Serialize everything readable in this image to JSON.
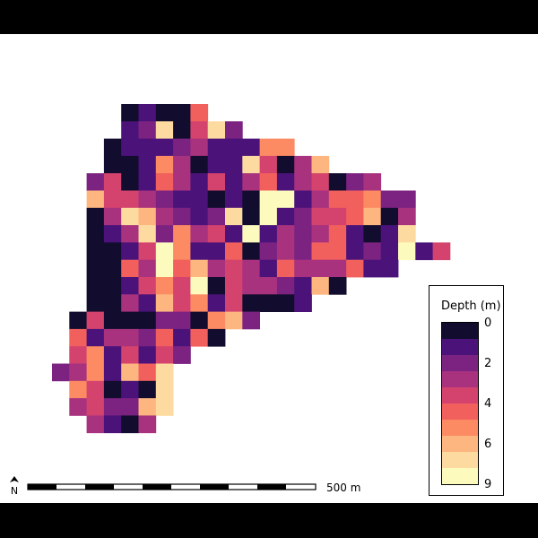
{
  "legend": {
    "title": "Depth (m)",
    "ticks": [
      "0",
      "2",
      "4",
      "6",
      "9"
    ],
    "colors": [
      "#120d2e",
      "#4b137a",
      "#7c2382",
      "#a8327e",
      "#d4436e",
      "#f1605d",
      "#fc8a63",
      "#fdb67f",
      "#fddba0",
      "#fcfbbd"
    ]
  },
  "scale_bar": {
    "label": "500 m"
  },
  "north_arrow": {
    "label": "N"
  },
  "chart_data": {
    "type": "heatmap",
    "value_range": [
      0,
      9
    ],
    "colorbar_label": "Depth (m)",
    "grid_rows": [
      {
        "row": 0,
        "start_col": 4,
        "values": [
          0,
          1,
          0,
          0,
          5
        ]
      },
      {
        "row": 1,
        "start_col": 4,
        "values": [
          1,
          2,
          8,
          0,
          4,
          8,
          2
        ]
      },
      {
        "row": 2,
        "start_col": 3,
        "values": [
          0,
          1,
          1,
          1,
          2,
          3,
          1,
          1,
          1,
          6,
          6
        ]
      },
      {
        "row": 3,
        "start_col": 3,
        "values": [
          0,
          0,
          1,
          6,
          3,
          0,
          1,
          1,
          8,
          4,
          0,
          3,
          7
        ]
      },
      {
        "row": 4,
        "start_col": 2,
        "values": [
          2,
          4,
          0,
          1,
          5,
          3,
          1,
          4,
          1,
          3,
          5,
          1,
          3,
          4,
          0,
          2,
          3
        ]
      },
      {
        "row": 5,
        "start_col": 2,
        "values": [
          7,
          4,
          4,
          3,
          2,
          1,
          1,
          0,
          1,
          0,
          9,
          9,
          1,
          3,
          5,
          5,
          6,
          2,
          2
        ]
      },
      {
        "row": 6,
        "start_col": 2,
        "values": [
          0,
          3,
          8,
          7,
          3,
          2,
          1,
          2,
          8,
          0,
          9,
          1,
          2,
          4,
          4,
          5,
          7,
          0,
          3
        ]
      },
      {
        "row": 7,
        "start_col": 2,
        "values": [
          0,
          1,
          3,
          8,
          2,
          6,
          3,
          4,
          1,
          9,
          1,
          3,
          2,
          3,
          5,
          1,
          0,
          1,
          8
        ]
      },
      {
        "row": 8,
        "start_col": 2,
        "values": [
          0,
          0,
          1,
          4,
          9,
          6,
          1,
          1,
          5,
          0,
          2,
          3,
          2,
          5,
          5,
          1,
          2,
          1,
          9,
          1,
          4
        ]
      },
      {
        "row": 9,
        "start_col": 2,
        "values": [
          0,
          0,
          5,
          3,
          9,
          5,
          7,
          3,
          4,
          3,
          1,
          5,
          3,
          3,
          3,
          5,
          1,
          1
        ]
      },
      {
        "row": 10,
        "start_col": 2,
        "values": [
          0,
          0,
          1,
          4,
          6,
          4,
          9,
          0,
          4,
          3,
          3,
          2,
          1,
          7,
          0
        ]
      },
      {
        "row": 11,
        "start_col": 2,
        "values": [
          0,
          0,
          3,
          1,
          7,
          4,
          6,
          1,
          4,
          0,
          0,
          0,
          1
        ]
      },
      {
        "row": 12,
        "start_col": 1,
        "values": [
          0,
          4,
          0,
          0,
          0,
          2,
          2,
          0,
          6,
          7,
          2
        ]
      },
      {
        "row": 13,
        "start_col": 1,
        "values": [
          5,
          1,
          3,
          3,
          2,
          5,
          1,
          5,
          0
        ]
      },
      {
        "row": 14,
        "start_col": 1,
        "values": [
          4,
          6,
          1,
          4,
          1,
          4,
          2
        ]
      },
      {
        "row": 15,
        "start_col": 0,
        "values": [
          2,
          3,
          6,
          1,
          7,
          5,
          8
        ]
      },
      {
        "row": 16,
        "start_col": 1,
        "values": [
          6,
          4,
          0,
          1,
          0,
          8
        ]
      },
      {
        "row": 17,
        "start_col": 1,
        "values": [
          3,
          4,
          2,
          2,
          7,
          8
        ]
      },
      {
        "row": 18,
        "start_col": 2,
        "values": [
          3,
          1,
          0,
          3
        ]
      }
    ]
  }
}
